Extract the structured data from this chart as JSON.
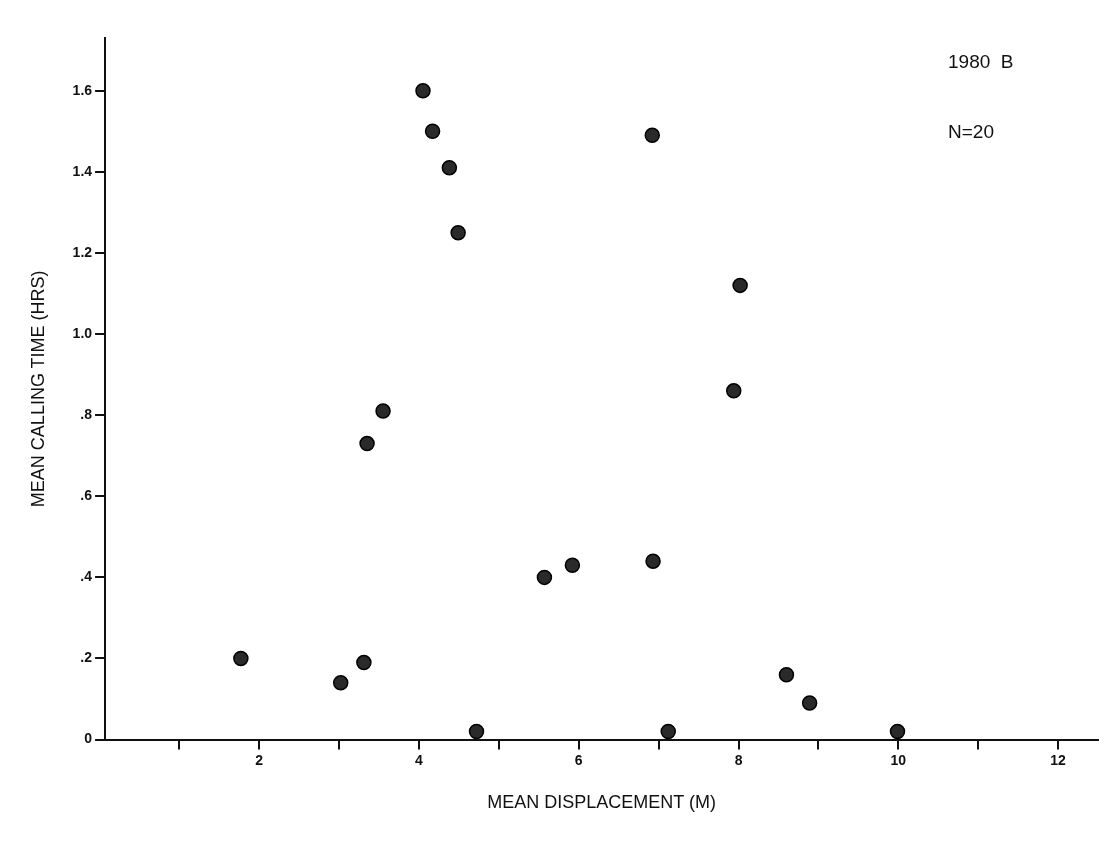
{
  "chart_data": {
    "type": "scatter",
    "xlabel": "MEAN DISPLACEMENT (M)",
    "ylabel": "MEAN CALLING TIME (HRS)",
    "annotations": [
      "1980  B",
      "N=20"
    ],
    "x": [
      1.77,
      3.02,
      3.31,
      3.35,
      3.55,
      4.05,
      4.17,
      4.38,
      4.49,
      4.72,
      5.57,
      5.92,
      6.92,
      6.93,
      7.12,
      8.02,
      7.94,
      8.6,
      8.89,
      9.99
    ],
    "series": [
      {
        "color": "#2a2a2a",
        "values": [
          0.2,
          0.14,
          0.19,
          0.73,
          0.81,
          1.6,
          1.5,
          1.41,
          1.25,
          0.02,
          0.4,
          0.43,
          1.49,
          0.44,
          0.02,
          1.12,
          0.86,
          0.16,
          0.09,
          0.02
        ]
      }
    ],
    "xlim": [
      0.07,
      12.5
    ],
    "ylim": [
      0,
      1.73
    ],
    "xticks": [
      {
        "value": 1,
        "label": null
      },
      2,
      {
        "value": 3,
        "label": null
      },
      4,
      {
        "value": 5,
        "label": null
      },
      6,
      {
        "value": 7,
        "label": null
      },
      8,
      {
        "value": 9,
        "label": null
      },
      10,
      {
        "value": 11,
        "label": null
      },
      12
    ],
    "yticks": [
      {
        "value": 0,
        "label": "0"
      },
      {
        "value": 0.2,
        "label": ".2"
      },
      {
        "value": 0.4,
        "label": ".4"
      },
      {
        "value": 0.6,
        "label": ".6"
      },
      {
        "value": 0.8,
        "label": ".8"
      },
      {
        "value": 1,
        "label": "1.0"
      },
      {
        "value": 1.2,
        "label": "1.2"
      },
      {
        "value": 1.4,
        "label": "1.4"
      },
      {
        "value": 1.6,
        "label": "1.6"
      }
    ],
    "grid": false,
    "legend": false,
    "marker": "circle"
  }
}
